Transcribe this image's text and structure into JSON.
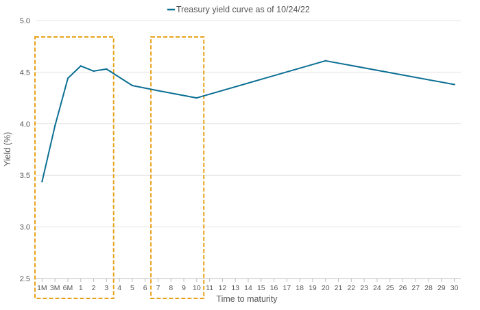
{
  "chart_data": {
    "type": "line",
    "title": "",
    "xlabel": "Time to maturity",
    "ylabel": "Yield (%)",
    "legend": {
      "position": "top-center",
      "entries": [
        "Treasury yield curve as of 10/24/22"
      ]
    },
    "ylim": [
      2.5,
      5.0
    ],
    "yticks": [
      "2.5",
      "3.0",
      "3.5",
      "4.0",
      "4.5",
      "5.0"
    ],
    "grid": true,
    "x_ticks": [
      "1M",
      "3M",
      "6M",
      "1",
      "2",
      "3",
      "4",
      "5",
      "6",
      "7",
      "8",
      "9",
      "10",
      "11",
      "12",
      "13",
      "14",
      "15",
      "16",
      "17",
      "18",
      "19",
      "20",
      "21",
      "22",
      "23",
      "24",
      "25",
      "26",
      "27",
      "28",
      "29",
      "30"
    ],
    "series": [
      {
        "name": "Treasury yield curve as of 10/24/22",
        "color": "#0b6f94",
        "points": [
          {
            "x": "1M",
            "y": 3.44
          },
          {
            "x": "3M",
            "y": 3.98
          },
          {
            "x": "6M",
            "y": 4.44
          },
          {
            "x": "1",
            "y": 4.56
          },
          {
            "x": "2",
            "y": 4.51
          },
          {
            "x": "3",
            "y": 4.53
          },
          {
            "x": "5",
            "y": 4.37
          },
          {
            "x": "7",
            "y": 4.32
          },
          {
            "x": "10",
            "y": 4.25
          },
          {
            "x": "20",
            "y": 4.61
          },
          {
            "x": "30",
            "y": 4.38
          }
        ]
      }
    ],
    "highlights": [
      {
        "from": "1M",
        "to": "3",
        "color": "#e8a21a",
        "style": "dashed"
      },
      {
        "from": "7",
        "to": "10",
        "color": "#e8a21a",
        "style": "dashed"
      }
    ]
  }
}
